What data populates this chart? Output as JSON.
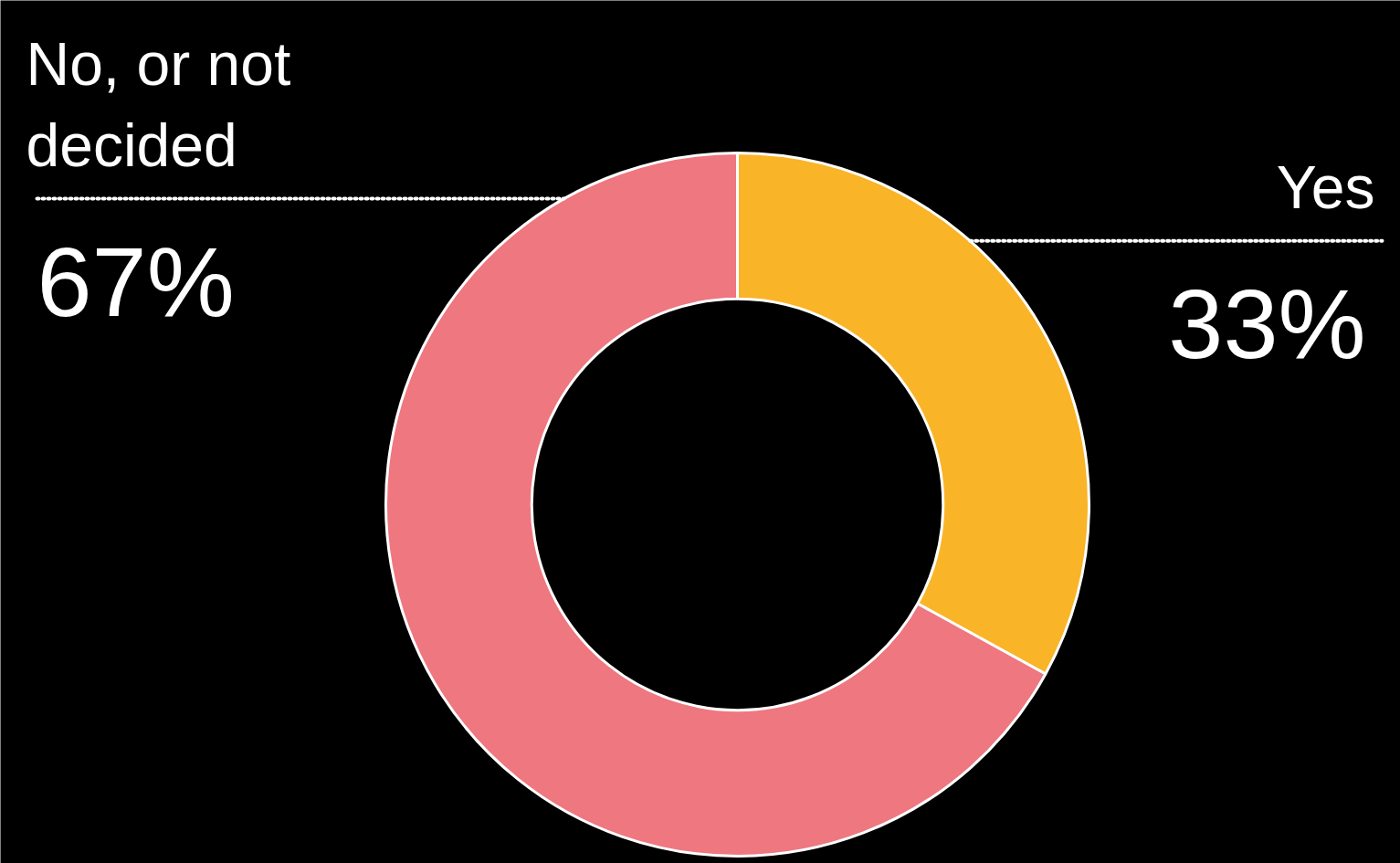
{
  "chart_data": {
    "type": "donut",
    "categories": [
      "Yes",
      "No, or not decided"
    ],
    "values": [
      33,
      67
    ],
    "value_labels": [
      "33%",
      "67%"
    ],
    "colors": [
      "#f9b428",
      "#ee7780"
    ]
  }
}
